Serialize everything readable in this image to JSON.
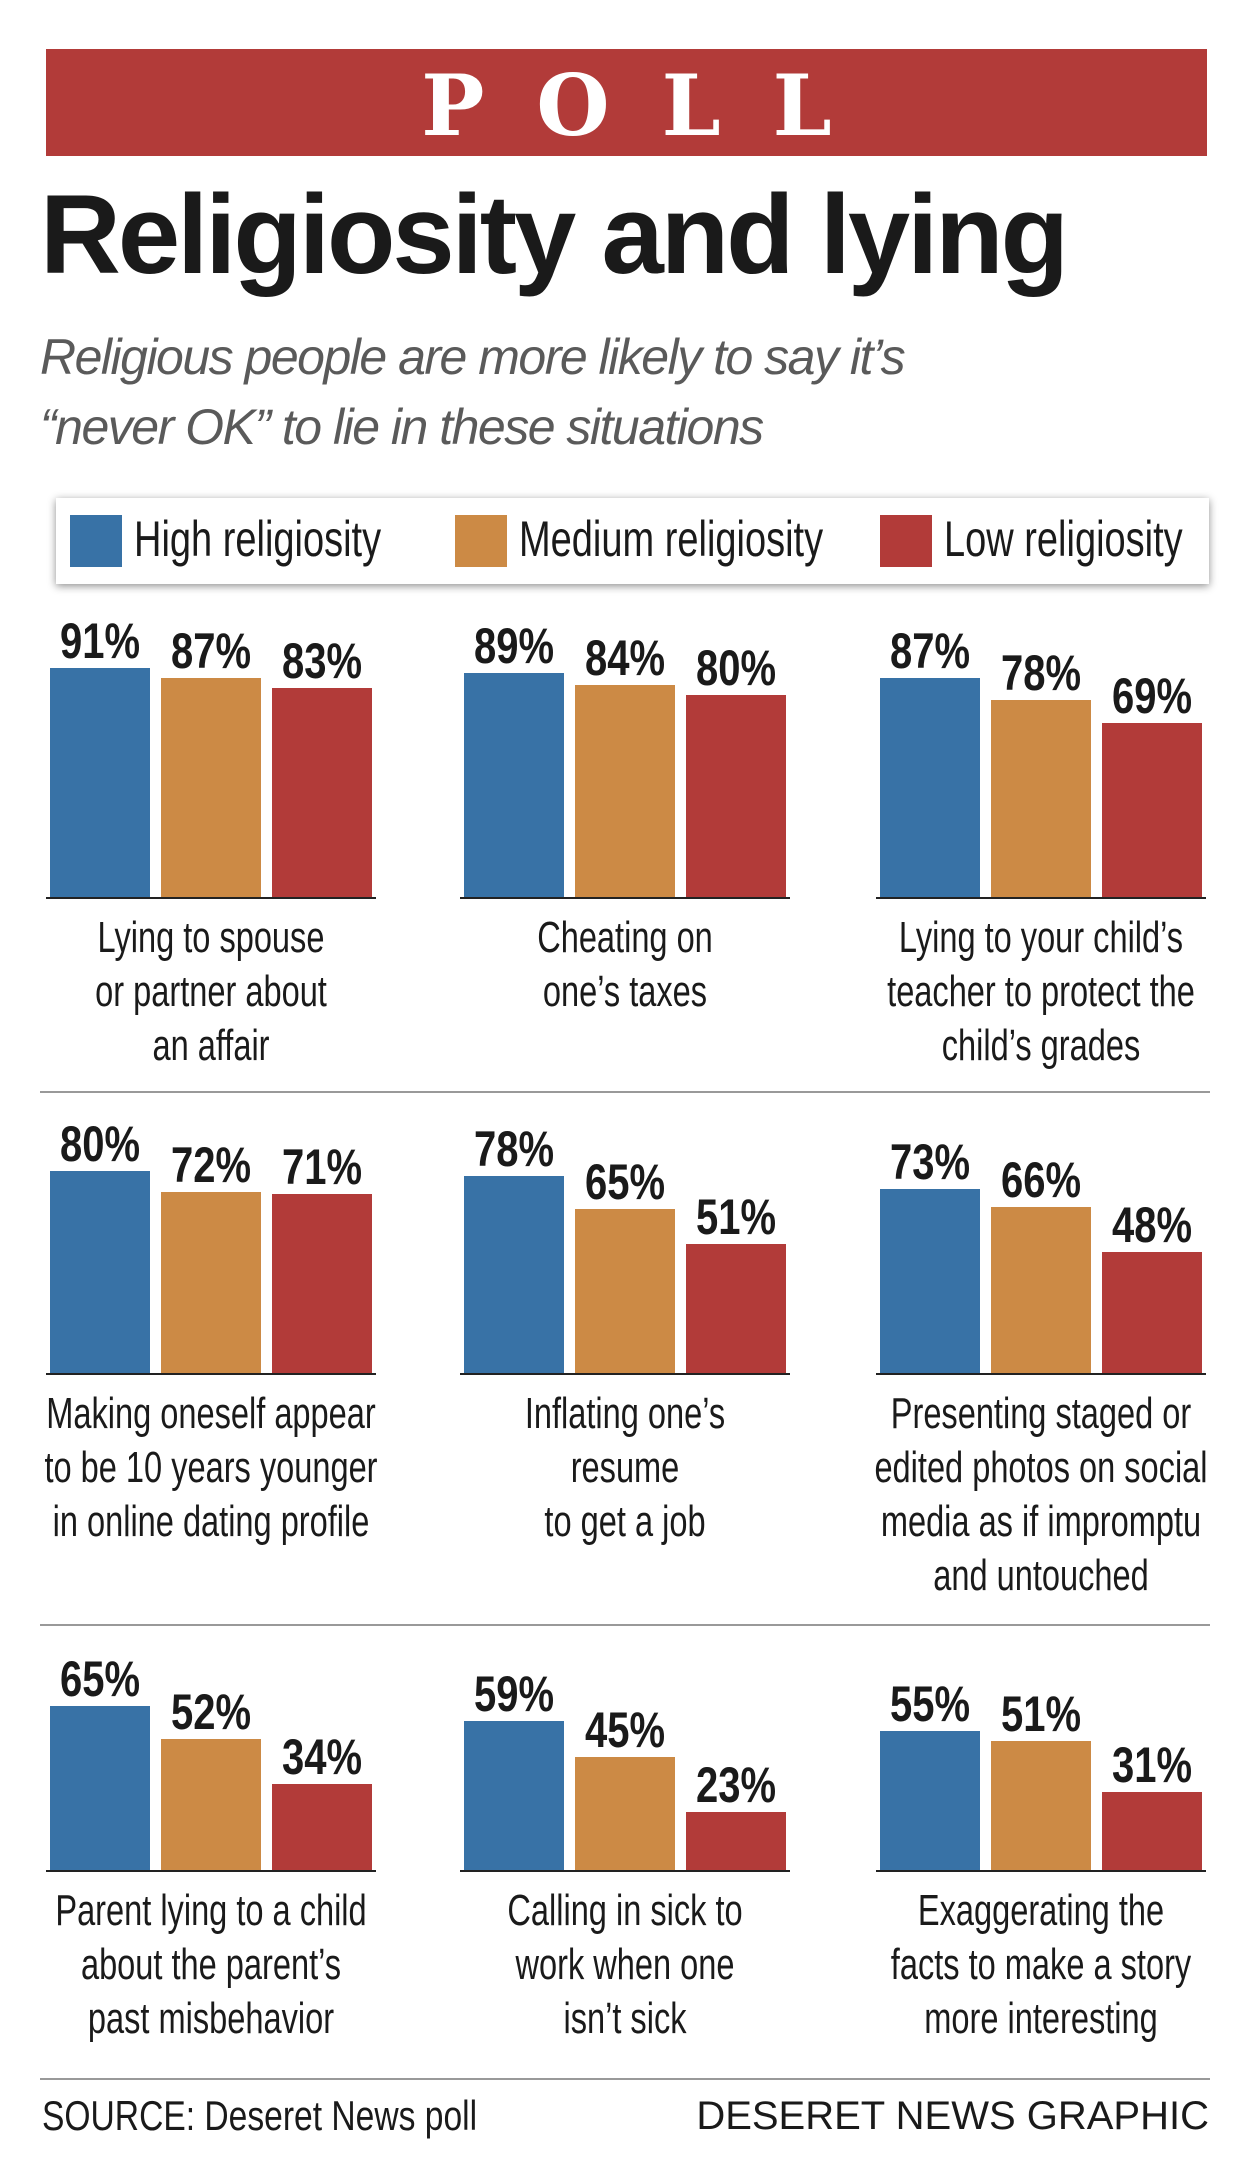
{
  "chart_data": {
    "type": "bar",
    "kicker": "POLL",
    "title": "Religiosity and lying",
    "subtitle": "Religious people are more likely to say it’s\n“never OK” to lie in these situations",
    "source": "SOURCE: Deseret News poll",
    "credit": "DESERET NEWS GRAPHIC",
    "categories": [
      "Lying to spouse\nor partner about\nan affair",
      "Cheating on\none’s taxes",
      "Lying to your child’s\nteacher to protect the\nchild’s grades",
      "Making oneself appear\nto be 10 years younger\nin online dating profile",
      "Inflating one’s\nresume\nto get a job",
      "Presenting staged or\nedited photos on social\nmedia as if impromptu\nand untouched",
      "Parent lying to a child\nabout the parent’s\npast misbehavior",
      "Calling in sick to\nwork when one\nisn’t sick",
      "Exaggerating the\nfacts to make a story\nmore interesting"
    ],
    "series": [
      {
        "name": "High religiosity",
        "color": "#3872a6",
        "values": [
          91,
          89,
          87,
          80,
          78,
          73,
          65,
          59,
          55
        ],
        "value_labels": [
          "91%",
          "89%",
          "87%",
          "80%",
          "78%",
          "73%",
          "65%",
          "59%",
          "55%"
        ]
      },
      {
        "name": "Medium religiosity",
        "color": "#cc8a45",
        "values": [
          87,
          84,
          78,
          72,
          65,
          66,
          52,
          45,
          51
        ],
        "value_labels": [
          "87%",
          "84%",
          "78%",
          "72%",
          "65%",
          "66%",
          "52%",
          "45%",
          "51%"
        ]
      },
      {
        "name": "Low religiosity",
        "color": "#b23b39",
        "values": [
          83,
          80,
          69,
          71,
          51,
          48,
          34,
          23,
          31
        ],
        "value_labels": [
          "83%",
          "80%",
          "69%",
          "71%",
          "51%",
          "48%",
          "34%",
          "23%",
          "31%"
        ]
      }
    ]
  }
}
